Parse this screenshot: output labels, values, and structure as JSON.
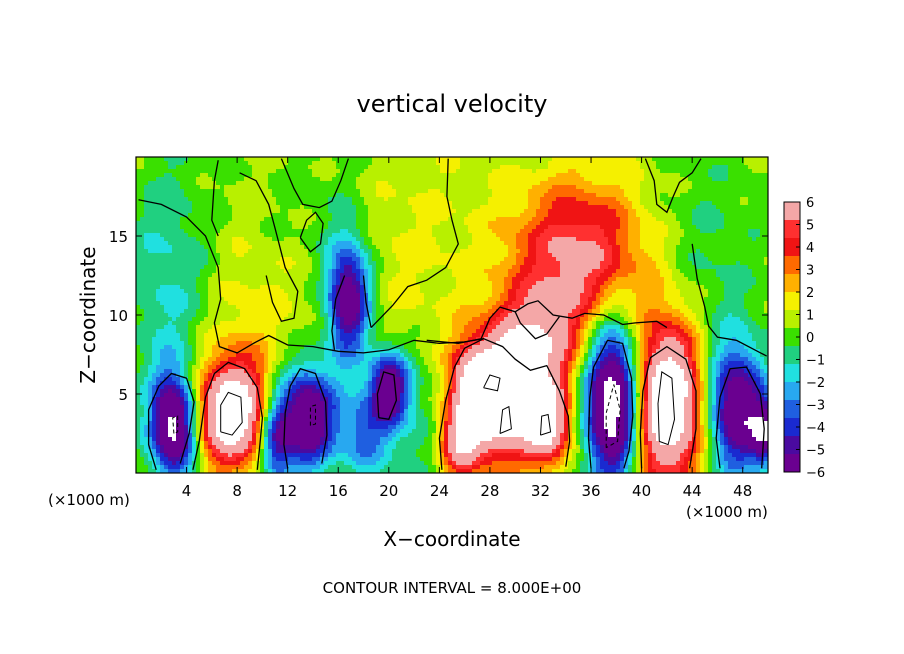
{
  "chart_data": {
    "type": "heatmap",
    "title": "vertical velocity",
    "xlabel": "X−coordinate",
    "ylabel": "Z−coordinate",
    "x_unit_left": "(×1000 m)",
    "x_unit_right": "(×1000 m)",
    "footer": "CONTOUR INTERVAL = 8.000E+00",
    "xlim": [
      0,
      50
    ],
    "ylim": [
      0,
      20
    ],
    "x_ticks": [
      4,
      8,
      12,
      16,
      20,
      24,
      28,
      32,
      36,
      40,
      44,
      48
    ],
    "x_tick_labels": [
      "4",
      "8",
      "12",
      "16",
      "20",
      "24",
      "28",
      "32",
      "36",
      "40",
      "44",
      "48"
    ],
    "y_ticks": [
      5,
      10,
      15
    ],
    "y_tick_labels": [
      "5",
      "10",
      "15"
    ],
    "colorbar": {
      "range": [
        -6,
        6
      ],
      "tick_values": [
        6,
        5,
        4,
        3,
        2,
        1,
        0,
        -1,
        -2,
        -3,
        -4,
        -5,
        -6
      ],
      "tick_labels": [
        "6",
        "5",
        "4",
        "3",
        "2",
        "1",
        "0",
        "−1",
        "−2",
        "−3",
        "−4",
        "−5",
        "−6"
      ],
      "colors": [
        "#f4a7a7",
        "#ff3030",
        "#f01414",
        "#ff6a00",
        "#ffb000",
        "#f5f000",
        "#b8f000",
        "#3ae000",
        "#20d080",
        "#20e0e0",
        "#28a8f0",
        "#1f5fe0",
        "#1a2ad0",
        "#4a0aa0",
        "#6a0090"
      ]
    },
    "features": [
      {
        "x": 3,
        "z": 3,
        "amp": -8.5,
        "sx": 1.3,
        "sz": 2.3
      },
      {
        "x": 7.5,
        "z": 3.8,
        "amp": 9.0,
        "sx": 2.0,
        "sz": 2.3
      },
      {
        "x": 13.5,
        "z": 3.5,
        "amp": -8.0,
        "sx": 1.6,
        "sz": 2.3
      },
      {
        "x": 16.8,
        "z": 11.0,
        "amp": -7.5,
        "sx": 1.2,
        "sz": 2.6
      },
      {
        "x": 20.0,
        "z": 5.5,
        "amp": -6.5,
        "sx": 1.1,
        "sz": 1.6
      },
      {
        "x": 26.5,
        "z": 5.0,
        "amp": 7.0,
        "sx": 1.3,
        "sz": 2.3
      },
      {
        "x": 29.0,
        "z": 4.5,
        "amp": 9.0,
        "sx": 1.7,
        "sz": 2.5
      },
      {
        "x": 32.5,
        "z": 3.2,
        "amp": 8.0,
        "sx": 1.3,
        "sz": 1.8
      },
      {
        "x": 25.5,
        "z": 1.8,
        "amp": 5.0,
        "sx": 1.1,
        "sz": 1.4
      },
      {
        "x": 31.5,
        "z": 8.0,
        "amp": 5.5,
        "sx": 2.3,
        "sz": 2.2
      },
      {
        "x": 35.0,
        "z": 13.5,
        "amp": 5.2,
        "sx": 3.8,
        "sz": 3.5
      },
      {
        "x": 37.8,
        "z": 4.5,
        "amp": -10.0,
        "sx": 1.6,
        "sz": 3.6
      },
      {
        "x": 42.0,
        "z": 4.5,
        "amp": 10.0,
        "sx": 2.0,
        "sz": 3.5
      },
      {
        "x": 47.5,
        "z": 4.0,
        "amp": -7.5,
        "sx": 1.6,
        "sz": 2.8
      },
      {
        "x": 49.8,
        "z": 2.5,
        "amp": -6.0,
        "sx": 0.8,
        "sz": 1.4
      },
      {
        "x": 11.0,
        "z": 2.0,
        "amp": -5.0,
        "sx": 0.9,
        "sz": 2.0
      },
      {
        "x": 18.0,
        "z": 2.5,
        "amp": -3.5,
        "sx": 1.5,
        "sz": 2.0
      },
      {
        "x": 22.0,
        "z": 3.0,
        "amp": -1.5,
        "sx": 2.0,
        "sz": 3.0
      },
      {
        "x": 9.0,
        "z": 9.5,
        "amp": 1.0,
        "sx": 3.0,
        "sz": 4.0
      },
      {
        "x": 2.5,
        "z": 12.0,
        "amp": -2.0,
        "sx": 2.5,
        "sz": 6.0
      },
      {
        "x": 45.0,
        "z": 13.0,
        "amp": -1.2,
        "sx": 3.5,
        "sz": 6.0
      },
      {
        "x": 21.0,
        "z": 14.0,
        "amp": 0.8,
        "sx": 4.0,
        "sz": 5.0
      },
      {
        "x": 15.0,
        "z": 17.0,
        "amp": -0.8,
        "sx": 3.0,
        "sz": 3.0
      }
    ],
    "zero_contours": [
      [
        [
          0.2,
          17.3
        ],
        [
          2,
          17.0
        ],
        [
          4,
          16.2
        ],
        [
          5.5,
          15.0
        ],
        [
          6.5,
          13.0
        ],
        [
          6.7,
          11.0
        ],
        [
          6.2,
          9.5
        ],
        [
          6.6,
          8.0
        ],
        [
          8,
          7.6
        ],
        [
          9.5,
          8.3
        ],
        [
          10.5,
          8.7
        ],
        [
          12.0,
          8.1
        ],
        [
          14.0,
          8.0
        ],
        [
          16.0,
          7.7
        ],
        [
          18.0,
          7.6
        ],
        [
          20.0,
          7.8
        ],
        [
          22.0,
          8.4
        ],
        [
          24.0,
          8.2
        ],
        [
          26.0,
          8.3
        ],
        [
          27.5,
          8.5
        ]
      ],
      [
        [
          6.5,
          19.8
        ],
        [
          6.2,
          18.5
        ],
        [
          6.0,
          16.0
        ],
        [
          6.5,
          15.0
        ]
      ],
      [
        [
          8.2,
          19.0
        ],
        [
          9.5,
          18.5
        ],
        [
          10.5,
          17.0
        ],
        [
          11.0,
          15.5
        ],
        [
          11.8,
          13.0
        ],
        [
          12.8,
          11.5
        ],
        [
          12.5,
          9.8
        ],
        [
          11.5,
          9.6
        ],
        [
          10.8,
          10.8
        ],
        [
          10.3,
          12.5
        ]
      ],
      [
        [
          11.5,
          19.9
        ],
        [
          12.5,
          18.0
        ],
        [
          13.2,
          17.0
        ],
        [
          14.5,
          16.8
        ],
        [
          15.5,
          17.2
        ],
        [
          16.2,
          18.5
        ],
        [
          16.8,
          19.9
        ]
      ],
      [
        [
          13.0,
          14.9
        ],
        [
          13.5,
          16.0
        ],
        [
          14.2,
          16.5
        ],
        [
          14.8,
          15.8
        ],
        [
          14.6,
          14.5
        ],
        [
          13.8,
          14.0
        ],
        [
          13.0,
          14.9
        ]
      ],
      [
        [
          16.5,
          12.5
        ],
        [
          15.8,
          11.0
        ],
        [
          15.5,
          9.0
        ],
        [
          15.7,
          7.8
        ]
      ],
      [
        [
          18.0,
          12.5
        ],
        [
          18.2,
          10.8
        ],
        [
          18.6,
          9.2
        ]
      ],
      [
        [
          18.6,
          9.2
        ],
        [
          20.3,
          10.6
        ],
        [
          21.5,
          11.8
        ],
        [
          23.0,
          12.2
        ],
        [
          24.5,
          13.0
        ],
        [
          25.5,
          14.5
        ],
        [
          25.0,
          16.0
        ],
        [
          24.6,
          17.5
        ],
        [
          24.7,
          19.9
        ]
      ],
      [
        [
          23.0,
          8.4
        ],
        [
          25.5,
          8.2
        ],
        [
          27.3,
          8.5
        ],
        [
          28.0,
          9.8
        ],
        [
          28.8,
          10.5
        ],
        [
          30.0,
          10.2
        ],
        [
          31.0,
          10.7
        ],
        [
          31.8,
          10.9
        ],
        [
          33.0,
          10.0
        ],
        [
          34.5,
          9.8
        ],
        [
          35.5,
          10.1
        ],
        [
          37.0,
          10.0
        ],
        [
          38.5,
          9.4
        ],
        [
          39.5,
          9.5
        ],
        [
          41.2,
          9.6
        ],
        [
          42.0,
          9.2
        ]
      ],
      [
        [
          30.0,
          10.2
        ],
        [
          30.4,
          9.5
        ],
        [
          31.6,
          8.5
        ],
        [
          32.5,
          8.8
        ],
        [
          33.5,
          9.9
        ]
      ],
      [
        [
          40.3,
          19.9
        ],
        [
          41.0,
          18.5
        ],
        [
          41.2,
          17.0
        ],
        [
          42.0,
          16.5
        ],
        [
          42.5,
          17.5
        ],
        [
          43.0,
          18.4
        ],
        [
          44.0,
          19.0
        ],
        [
          44.7,
          19.9
        ]
      ],
      [
        [
          44.0,
          14.5
        ],
        [
          44.4,
          12.3
        ],
        [
          45.0,
          10.5
        ],
        [
          45.3,
          9.3
        ],
        [
          46.0,
          8.6
        ],
        [
          47.5,
          8.4
        ],
        [
          49.9,
          7.4
        ]
      ],
      [
        [
          1.6,
          0.2
        ],
        [
          1.0,
          1.8
        ],
        [
          1.0,
          4.0
        ],
        [
          1.8,
          5.5
        ],
        [
          2.8,
          6.3
        ],
        [
          4.0,
          6.0
        ],
        [
          4.6,
          4.5
        ],
        [
          4.2,
          2.5
        ],
        [
          3.5,
          0.6
        ]
      ],
      [
        [
          4.5,
          0.2
        ],
        [
          5.0,
          2.0
        ],
        [
          5.5,
          4.8
        ],
        [
          6.2,
          6.3
        ],
        [
          7.3,
          7.0
        ],
        [
          8.6,
          6.6
        ],
        [
          9.6,
          5.4
        ],
        [
          10.0,
          3.5
        ],
        [
          9.8,
          1.8
        ],
        [
          9.6,
          0.2
        ]
      ],
      [
        [
          12.0,
          0.3
        ],
        [
          11.7,
          1.8
        ],
        [
          11.8,
          3.8
        ],
        [
          12.2,
          5.5
        ],
        [
          13.0,
          6.6
        ],
        [
          14.2,
          6.3
        ],
        [
          15.0,
          4.5
        ],
        [
          15.1,
          2.4
        ],
        [
          14.7,
          0.6
        ]
      ],
      [
        [
          19.2,
          3.5
        ],
        [
          19.1,
          5.0
        ],
        [
          19.6,
          6.4
        ],
        [
          20.4,
          6.2
        ],
        [
          20.6,
          4.6
        ],
        [
          20.0,
          3.4
        ],
        [
          19.2,
          3.5
        ]
      ],
      [
        [
          24.2,
          0.2
        ],
        [
          24.0,
          2.2
        ],
        [
          24.5,
          4.6
        ],
        [
          25.2,
          6.7
        ],
        [
          26.0,
          7.9
        ],
        [
          27.5,
          8.5
        ],
        [
          29.0,
          8.0
        ],
        [
          30.0,
          7.2
        ],
        [
          31.2,
          6.5
        ],
        [
          32.5,
          6.8
        ],
        [
          33.5,
          5.2
        ],
        [
          34.2,
          3.6
        ],
        [
          34.3,
          2.0
        ],
        [
          34.0,
          0.4
        ]
      ],
      [
        [
          36.0,
          0.3
        ],
        [
          35.8,
          2.2
        ],
        [
          35.9,
          4.8
        ],
        [
          36.2,
          6.7
        ],
        [
          37.3,
          8.4
        ],
        [
          38.5,
          8.2
        ],
        [
          39.2,
          6.0
        ],
        [
          39.3,
          3.6
        ],
        [
          39.0,
          1.4
        ],
        [
          38.6,
          0.3
        ]
      ],
      [
        [
          40.0,
          0.3
        ],
        [
          39.9,
          2.5
        ],
        [
          40.1,
          5.2
        ],
        [
          40.7,
          7.3
        ],
        [
          42.0,
          8.0
        ],
        [
          43.5,
          7.2
        ],
        [
          44.3,
          5.2
        ],
        [
          44.3,
          2.8
        ],
        [
          43.8,
          0.3
        ]
      ],
      [
        [
          46.2,
          0.3
        ],
        [
          45.9,
          2.2
        ],
        [
          46.2,
          4.8
        ],
        [
          47.0,
          6.6
        ],
        [
          48.3,
          6.7
        ],
        [
          49.4,
          5.0
        ],
        [
          49.7,
          2.8
        ],
        [
          49.5,
          0.3
        ]
      ]
    ],
    "strong_contours": [
      {
        "sign": 1,
        "pts": [
          [
            6.7,
            2.6
          ],
          [
            6.7,
            4.3
          ],
          [
            7.3,
            5.1
          ],
          [
            8.3,
            4.8
          ],
          [
            8.4,
            3.2
          ],
          [
            7.6,
            2.4
          ],
          [
            6.7,
            2.6
          ]
        ]
      },
      {
        "sign": 1,
        "pts": [
          [
            27.5,
            5.4
          ],
          [
            28.0,
            6.2
          ],
          [
            28.8,
            6.0
          ],
          [
            28.6,
            5.2
          ],
          [
            27.5,
            5.4
          ]
        ]
      },
      {
        "sign": 1,
        "pts": [
          [
            28.8,
            2.5
          ],
          [
            29.0,
            4.0
          ],
          [
            29.5,
            4.2
          ],
          [
            29.7,
            2.8
          ],
          [
            28.8,
            2.5
          ]
        ]
      },
      {
        "sign": 1,
        "pts": [
          [
            32.0,
            2.4
          ],
          [
            32.1,
            3.6
          ],
          [
            32.6,
            3.7
          ],
          [
            32.8,
            2.6
          ],
          [
            32.0,
            2.4
          ]
        ]
      },
      {
        "sign": -1,
        "pts": [
          [
            37.2,
            1.6
          ],
          [
            37.2,
            3.8
          ],
          [
            37.8,
            5.6
          ],
          [
            38.3,
            4.0
          ],
          [
            38.1,
            2.0
          ],
          [
            37.2,
            1.6
          ]
        ]
      },
      {
        "sign": 1,
        "pts": [
          [
            41.4,
            2.0
          ],
          [
            41.3,
            4.4
          ],
          [
            41.6,
            6.4
          ],
          [
            42.4,
            6.0
          ],
          [
            42.6,
            3.4
          ],
          [
            42.1,
            1.8
          ],
          [
            41.4,
            2.0
          ]
        ]
      },
      {
        "sign": -1,
        "pts": [
          [
            13.8,
            3.0
          ],
          [
            13.8,
            4.2
          ],
          [
            14.2,
            4.3
          ],
          [
            14.2,
            3.1
          ],
          [
            13.8,
            3.0
          ]
        ]
      },
      {
        "sign": -1,
        "pts": [
          [
            3.0,
            2.5
          ],
          [
            2.9,
            3.5
          ],
          [
            3.3,
            3.6
          ],
          [
            3.3,
            2.6
          ],
          [
            3.0,
            2.5
          ]
        ]
      }
    ]
  }
}
